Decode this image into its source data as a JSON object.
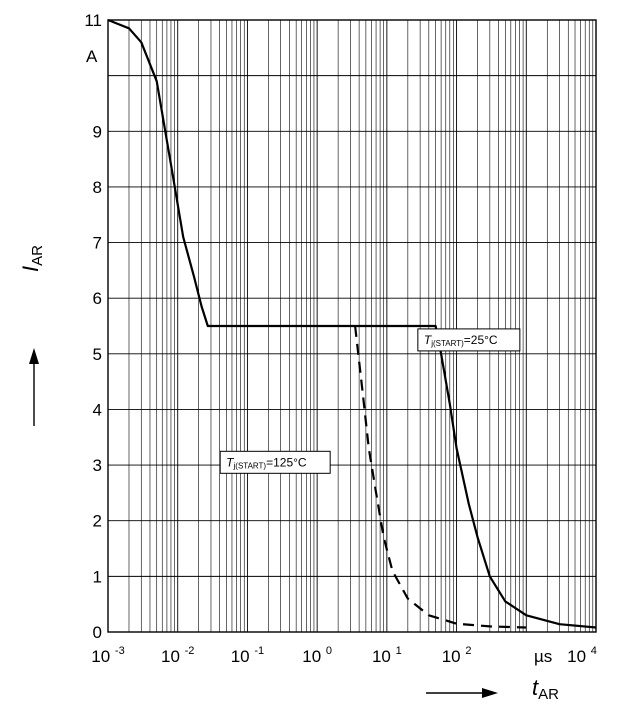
{
  "chart_data": {
    "type": "line",
    "x_scale": "log",
    "xlim_exponents": [
      -3,
      4
    ],
    "ylim": [
      0,
      11
    ],
    "grid": true,
    "x_ticks": [
      {
        "base": "10",
        "exp": "-3"
      },
      {
        "base": "10",
        "exp": "-2"
      },
      {
        "base": "10",
        "exp": "-1"
      },
      {
        "base": "10",
        "exp": "0"
      },
      {
        "base": "10",
        "exp": "1"
      },
      {
        "base": "10",
        "exp": "2"
      },
      {
        "base": "10",
        "exp": "4"
      }
    ],
    "x_unit": "µs",
    "y_ticks": [
      "0",
      "1",
      "2",
      "3",
      "4",
      "5",
      "6",
      "7",
      "8",
      "9",
      "11"
    ],
    "y_unit": "A",
    "ylabel": {
      "main": "I",
      "sub": "AR"
    },
    "xlabel": {
      "main": "t",
      "sub": "AR"
    },
    "series": [
      {
        "style": "solid",
        "points": [
          [
            0.001,
            11.0
          ],
          [
            0.002,
            10.85
          ],
          [
            0.003,
            10.6
          ],
          [
            0.005,
            9.9
          ],
          [
            0.008,
            8.4
          ],
          [
            0.012,
            7.1
          ],
          [
            0.017,
            6.4
          ],
          [
            0.022,
            5.85
          ],
          [
            0.027,
            5.5
          ],
          [
            50,
            5.5
          ],
          [
            60,
            5.0
          ],
          [
            80,
            4.1
          ],
          [
            100,
            3.3
          ],
          [
            150,
            2.3
          ],
          [
            200,
            1.7
          ],
          [
            300,
            1.0
          ],
          [
            500,
            0.55
          ],
          [
            1000,
            0.3
          ],
          [
            3000,
            0.14
          ],
          [
            10000,
            0.08
          ]
        ]
      },
      {
        "style": "dashed",
        "points": [
          [
            3.5,
            5.5
          ],
          [
            4.5,
            4.3
          ],
          [
            5.5,
            3.3
          ],
          [
            7,
            2.5
          ],
          [
            9,
            1.7
          ],
          [
            12,
            1.1
          ],
          [
            20,
            0.6
          ],
          [
            40,
            0.3
          ],
          [
            100,
            0.15
          ],
          [
            300,
            0.1
          ],
          [
            1000,
            0.08
          ]
        ]
      }
    ],
    "annotations": [
      {
        "main": "T",
        "sub": "j(START)",
        "rest": "=25°C",
        "x": 150,
        "y": 5.25
      },
      {
        "main": "T",
        "sub": "j(START)",
        "rest": "=125°C",
        "x": 0.25,
        "y": 3.05
      }
    ]
  }
}
